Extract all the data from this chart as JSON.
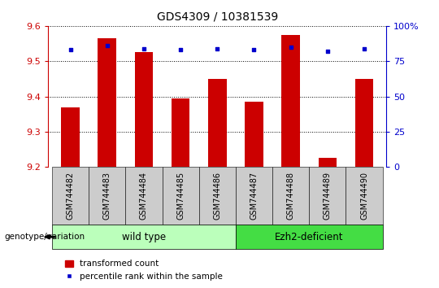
{
  "title": "GDS4309 / 10381539",
  "samples": [
    "GSM744482",
    "GSM744483",
    "GSM744484",
    "GSM744485",
    "GSM744486",
    "GSM744487",
    "GSM744488",
    "GSM744489",
    "GSM744490"
  ],
  "transformed_counts": [
    9.37,
    9.565,
    9.525,
    9.395,
    9.45,
    9.385,
    9.575,
    9.225,
    9.45
  ],
  "percentile_ranks": [
    83,
    86,
    84,
    83,
    84,
    83,
    85,
    82,
    84
  ],
  "ylim_left": [
    9.2,
    9.6
  ],
  "ylim_right": [
    0,
    100
  ],
  "yticks_left": [
    9.2,
    9.3,
    9.4,
    9.5,
    9.6
  ],
  "yticks_right": [
    0,
    25,
    50,
    75,
    100
  ],
  "bar_color": "#cc0000",
  "dot_color": "#0000cc",
  "bar_bottom": 9.2,
  "groups": [
    {
      "label": "wild type",
      "indices": [
        0,
        4
      ],
      "color": "#bbffbb"
    },
    {
      "label": "Ezh2-deficient",
      "indices": [
        5,
        8
      ],
      "color": "#44dd44"
    }
  ],
  "genotype_label": "genotype/variation",
  "legend_bar_label": "transformed count",
  "legend_dot_label": "percentile rank within the sample",
  "axis_color_left": "#cc0000",
  "axis_color_right": "#0000cc",
  "background_color": "#ffffff",
  "tick_bg_color": "#cccccc",
  "bar_width": 0.5
}
